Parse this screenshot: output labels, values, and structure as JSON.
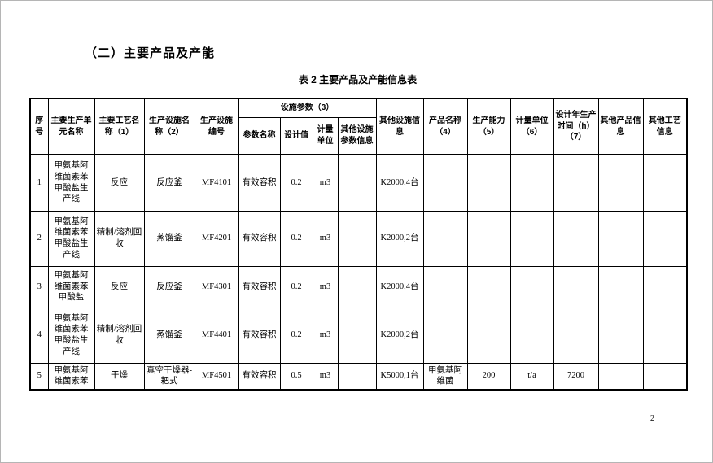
{
  "heading": {
    "section_title": "（二）主要产品及产能"
  },
  "table": {
    "caption": "表 2 主要产品及产能信息表",
    "headers": {
      "seq": "序号",
      "unit_name": "主要生产单元名称",
      "process_name": "主要工艺名称（1）",
      "facility_name": "生产设施名称（2）",
      "facility_code": "生产设施编号",
      "facility_params_group": "设施参数（3）",
      "param_name": "参数名称",
      "design_value": "设计值",
      "param_unit": "计量单位",
      "other_param_info": "其他设施参数信息",
      "other_facility_info": "其他设施信息",
      "product_name": "产品名称（4）",
      "capacity": "生产能力（5）",
      "capacity_unit": "计量单位（6）",
      "annual_production_time": "设计年生产时间（h）（7）",
      "other_product_info": "其他产品信息",
      "other_process_info": "其他工艺信息"
    },
    "rows": [
      {
        "cells": [
          "1",
          "甲氨基阿维菌素苯甲酸盐生产线",
          "反应",
          "反应釜",
          "MF4101",
          "有效容积",
          "0.2",
          "m3",
          "",
          "K2000,4台",
          "",
          "",
          "",
          "",
          "",
          ""
        ]
      },
      {
        "cells": [
          "2",
          "甲氨基阿维菌素苯甲酸盐生产线",
          "精制/溶剂回收",
          "蒸馏釜",
          "MF4201",
          "有效容积",
          "0.2",
          "m3",
          "",
          "K2000,2台",
          "",
          "",
          "",
          "",
          "",
          ""
        ]
      },
      {
        "cells": [
          "3",
          "甲氨基阿维菌素苯甲酸盐",
          "反应",
          "反应釜",
          "MF4301",
          "有效容积",
          "0.2",
          "m3",
          "",
          "K2000,4台",
          "",
          "",
          "",
          "",
          "",
          ""
        ]
      },
      {
        "cells": [
          "4",
          "甲氨基阿维菌素苯甲酸盐生产线",
          "精制/溶剂回收",
          "蒸馏釜",
          "MF4401",
          "有效容积",
          "0.2",
          "m3",
          "",
          "K2000,2台",
          "",
          "",
          "",
          "",
          "",
          ""
        ]
      },
      {
        "cells": [
          "5",
          "甲氨基阿维菌素苯",
          "干燥",
          "真空干燥器-耙式",
          "MF4501",
          "有效容积",
          "0.5",
          "m3",
          "",
          "K5000,1台",
          "甲氨基阿维菌",
          "200",
          "t/a",
          "7200",
          "",
          ""
        ]
      }
    ]
  },
  "footer": {
    "page_number": "2"
  }
}
